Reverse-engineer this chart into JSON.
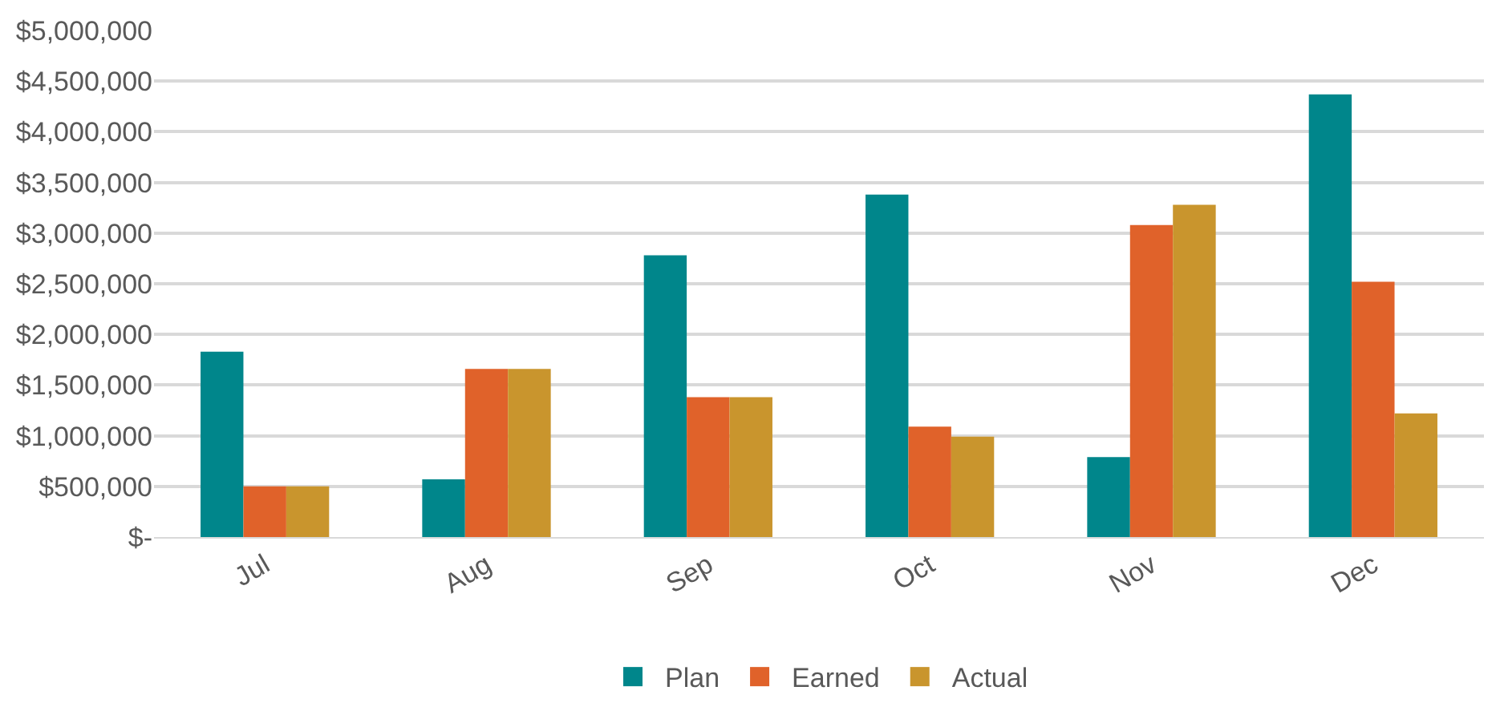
{
  "chart_data": {
    "type": "bar",
    "categories": [
      "Jul",
      "Aug",
      "Sep",
      "Oct",
      "Nov",
      "Dec"
    ],
    "series": [
      {
        "name": "Plan",
        "color": "#00868b",
        "values": [
          1830000,
          570000,
          2780000,
          3380000,
          790000,
          4370000
        ]
      },
      {
        "name": "Earned",
        "color": "#e0622a",
        "values": [
          500000,
          1660000,
          1380000,
          1090000,
          3080000,
          2520000
        ]
      },
      {
        "name": "Actual",
        "color": "#c9952d",
        "values": [
          500000,
          1660000,
          1380000,
          990000,
          3280000,
          1220000
        ]
      }
    ],
    "ylim": [
      0,
      5000000
    ],
    "yticks": [
      {
        "value": 0,
        "label": "$-"
      },
      {
        "value": 500000,
        "label": "$500,000"
      },
      {
        "value": 1000000,
        "label": "$1,000,000"
      },
      {
        "value": 1500000,
        "label": "$1,500,000"
      },
      {
        "value": 2000000,
        "label": "$2,000,000"
      },
      {
        "value": 2500000,
        "label": "$2,500,000"
      },
      {
        "value": 3000000,
        "label": "$3,000,000"
      },
      {
        "value": 3500000,
        "label": "$3,500,000"
      },
      {
        "value": 4000000,
        "label": "$4,000,000"
      },
      {
        "value": 4500000,
        "label": "$4,500,000"
      },
      {
        "value": 5000000,
        "label": "$5,000,000"
      }
    ],
    "grid": "y",
    "legend": "bottom"
  }
}
